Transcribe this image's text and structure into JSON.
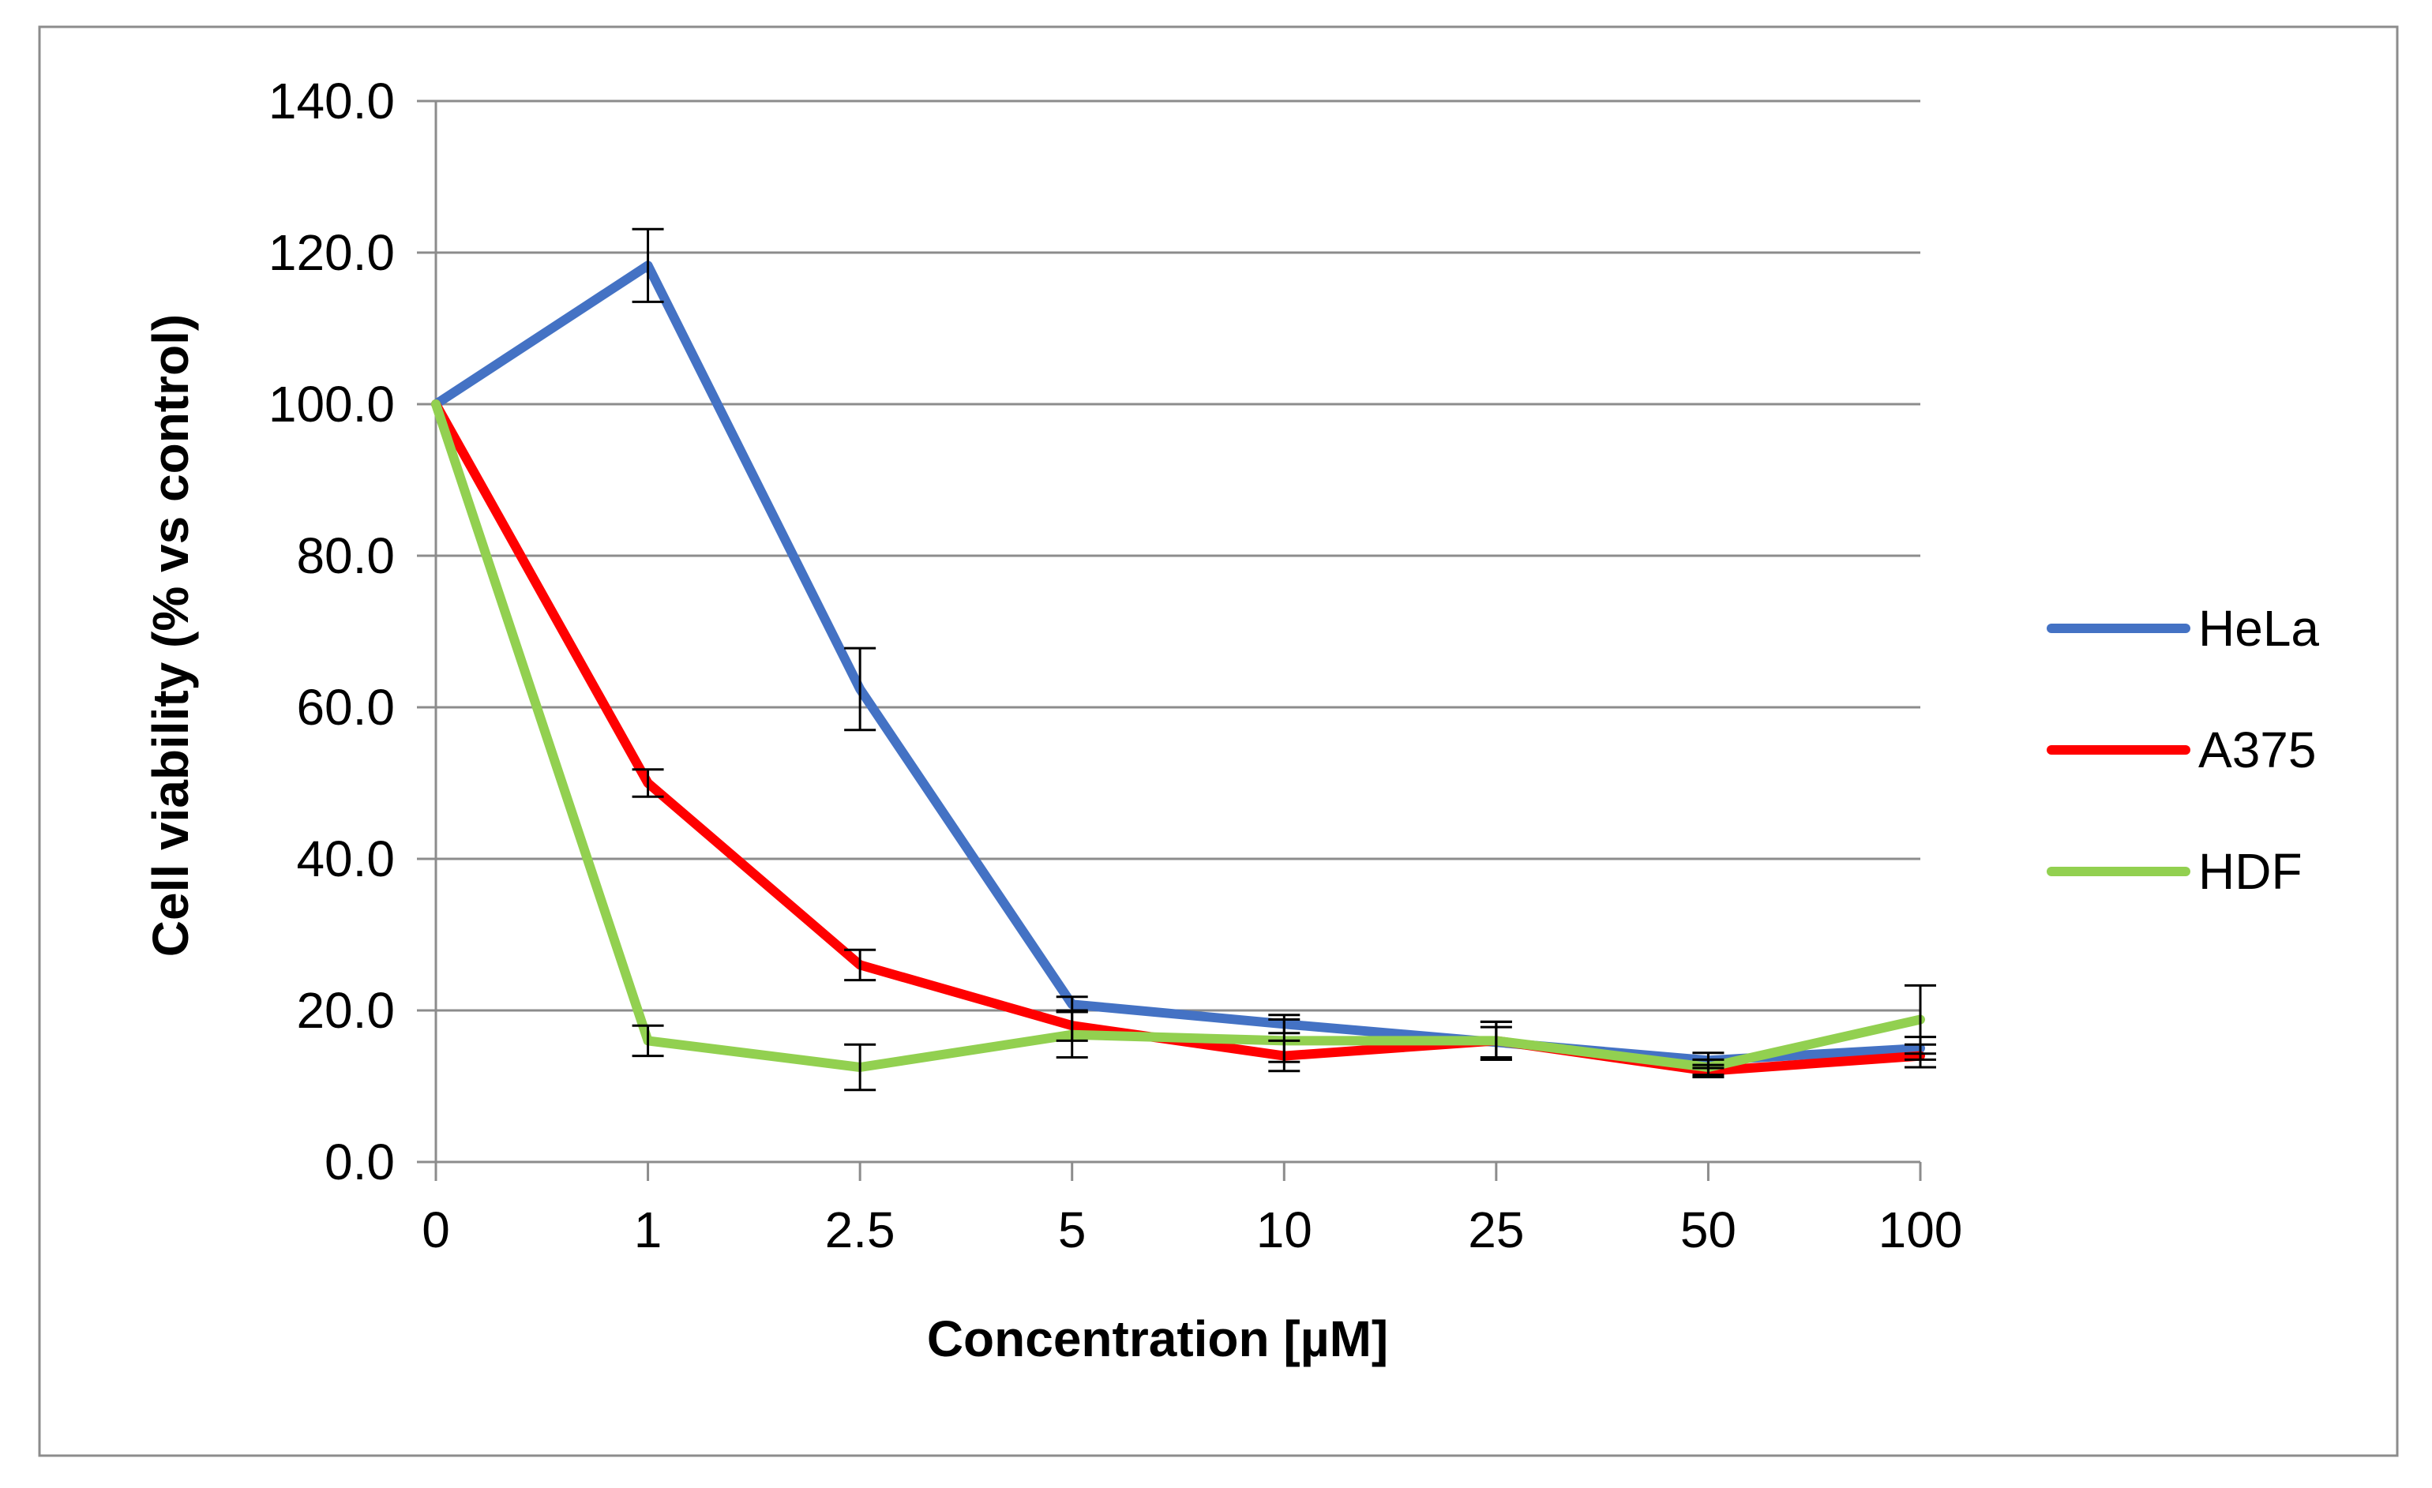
{
  "chart_data": {
    "type": "line",
    "title": "",
    "xlabel": "Concentration [µM]",
    "ylabel": "Cell viability (% vs control)",
    "categories": [
      "0",
      "1",
      "2.5",
      "5",
      "10",
      "25",
      "50",
      "100"
    ],
    "ylim": [
      0,
      140
    ],
    "ytick_values": [
      0,
      20,
      40,
      60,
      80,
      100,
      120,
      140
    ],
    "ytick_labels": [
      "0.0",
      "20.0",
      "40.0",
      "60.0",
      "80.0",
      "100.0",
      "120.0",
      "140.0"
    ],
    "grid": true,
    "legend_position": "right",
    "series": [
      {
        "name": "HeLa",
        "color": "#4472C4",
        "values": [
          100.0,
          118.3,
          62.4,
          20.8,
          18.2,
          15.8,
          13.4,
          15.0
        ],
        "errors": [
          0,
          4.8,
          5.4,
          1.0,
          1.2,
          2.0,
          1.0,
          1.5
        ]
      },
      {
        "name": "A375",
        "color": "#FF0000",
        "values": [
          100.0,
          50.0,
          26.0,
          18.0,
          14.0,
          16.0,
          12.0,
          14.0
        ],
        "errors": [
          0,
          1.8,
          2.0,
          2.0,
          2.0,
          2.5,
          0.8,
          1.5
        ]
      },
      {
        "name": "HDF",
        "color": "#92D050",
        "values": [
          100.0,
          16.0,
          12.5,
          16.8,
          16.0,
          16.0,
          12.5,
          18.8
        ],
        "errors": [
          0,
          2.0,
          3.0,
          3.0,
          2.8,
          2.5,
          1.0,
          4.5
        ]
      }
    ]
  }
}
